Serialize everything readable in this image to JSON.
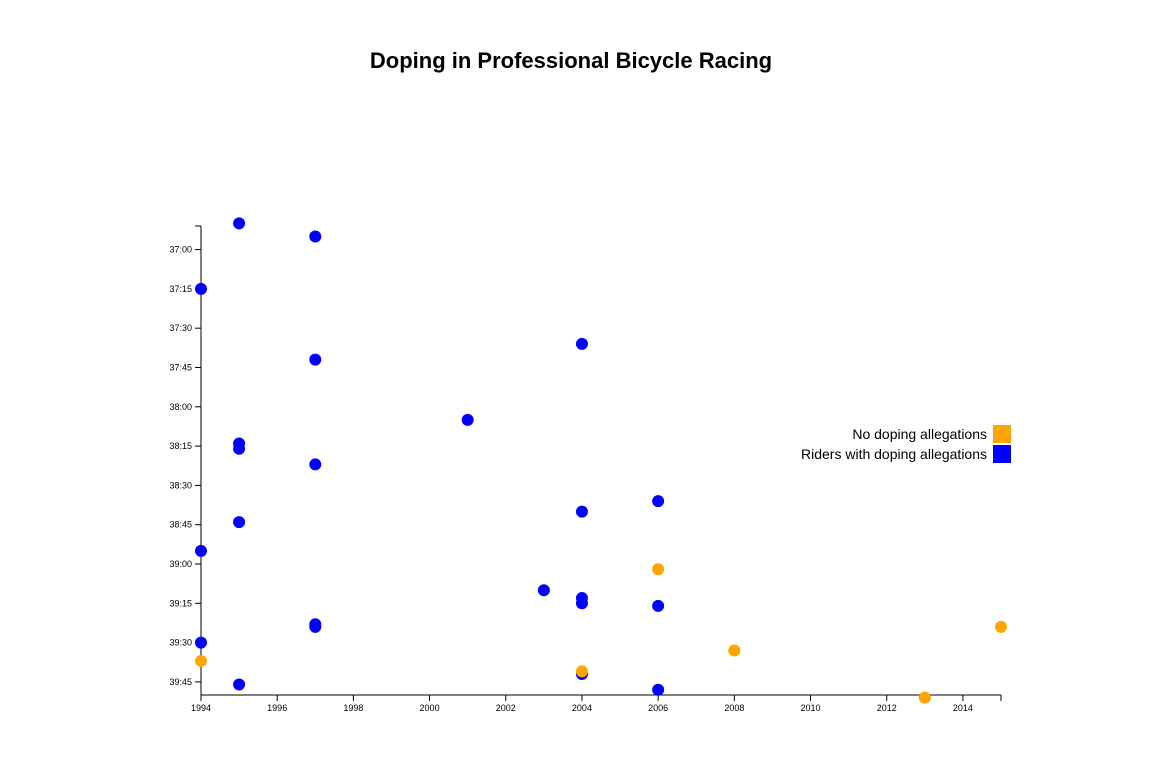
{
  "chart_data": {
    "type": "scatter",
    "title": "Doping in Professional Bicycle Racing",
    "xlabel": "",
    "ylabel": "",
    "xlim": [
      1994,
      2015
    ],
    "ylim_seconds": [
      2211,
      2390
    ],
    "x_ticks": [
      "1994",
      "1996",
      "1998",
      "2000",
      "2002",
      "2004",
      "2006",
      "2008",
      "2010",
      "2012",
      "2014"
    ],
    "y_ticks": [
      "37:00",
      "37:15",
      "37:30",
      "37:45",
      "38:00",
      "38:15",
      "38:30",
      "38:45",
      "39:00",
      "39:15",
      "39:30",
      "39:45"
    ],
    "colors": {
      "no_doping": "#FFA500",
      "doping": "#0000FF"
    },
    "legend": [
      {
        "label": "No doping allegations",
        "key": "no_doping"
      },
      {
        "label": "Riders with doping allegations",
        "key": "doping"
      }
    ],
    "series": [
      {
        "name": "Riders with doping allegations",
        "key": "doping",
        "points": [
          {
            "year": 1995,
            "time": "36:50"
          },
          {
            "year": 1997,
            "time": "36:55"
          },
          {
            "year": 1994,
            "time": "37:15"
          },
          {
            "year": 2004,
            "time": "37:36"
          },
          {
            "year": 1997,
            "time": "37:42"
          },
          {
            "year": 2001,
            "time": "38:05"
          },
          {
            "year": 1995,
            "time": "38:14"
          },
          {
            "year": 1995,
            "time": "38:16"
          },
          {
            "year": 1997,
            "time": "38:22"
          },
          {
            "year": 2006,
            "time": "38:36"
          },
          {
            "year": 2004,
            "time": "38:40"
          },
          {
            "year": 1995,
            "time": "38:44"
          },
          {
            "year": 1994,
            "time": "38:55"
          },
          {
            "year": 2003,
            "time": "39:10"
          },
          {
            "year": 2004,
            "time": "39:13"
          },
          {
            "year": 2004,
            "time": "39:15"
          },
          {
            "year": 2006,
            "time": "39:16"
          },
          {
            "year": 1997,
            "time": "39:23"
          },
          {
            "year": 1997,
            "time": "39:24"
          },
          {
            "year": 1994,
            "time": "39:30"
          },
          {
            "year": 2004,
            "time": "39:42"
          },
          {
            "year": 1995,
            "time": "39:46"
          },
          {
            "year": 2006,
            "time": "39:48"
          }
        ]
      },
      {
        "name": "No doping allegations",
        "key": "no_doping",
        "points": [
          {
            "year": 2006,
            "time": "39:02"
          },
          {
            "year": 2015,
            "time": "39:24"
          },
          {
            "year": 2008,
            "time": "39:33"
          },
          {
            "year": 1994,
            "time": "39:37"
          },
          {
            "year": 2004,
            "time": "39:41"
          },
          {
            "year": 2013,
            "time": "39:51"
          }
        ]
      }
    ]
  }
}
